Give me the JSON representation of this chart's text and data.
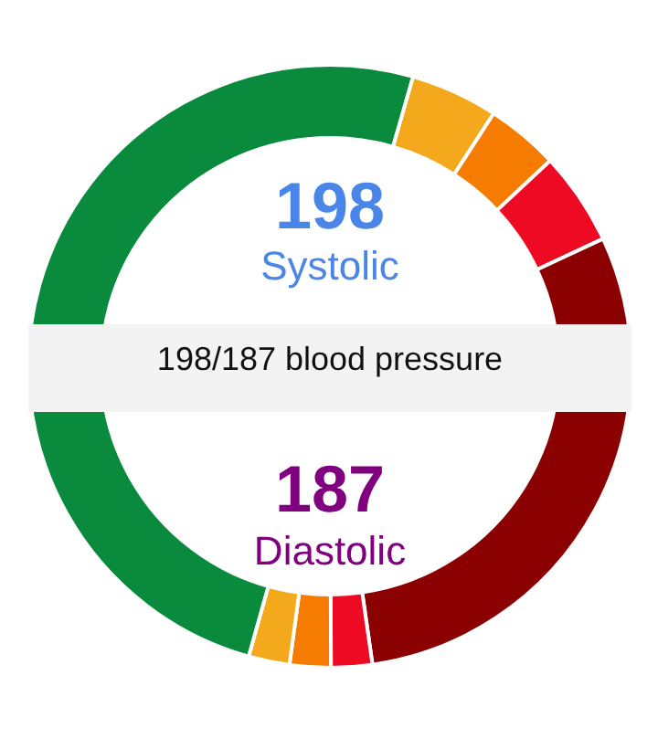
{
  "chart_data": {
    "type": "donut",
    "title": "198/187 blood pressure",
    "categories": [
      null,
      null,
      null,
      null,
      null,
      null,
      null,
      null
    ],
    "values": [
      4.7,
      3.9,
      5.0,
      29.7,
      2.2,
      2.2,
      2.2,
      50.1
    ],
    "colors": [
      "#f4a91c",
      "#f57c00",
      "#ee0a22",
      "#8b0000",
      "#ee0a22",
      "#f57c00",
      "#f4a91c",
      "#0a8a3d"
    ],
    "annotations": [
      "198",
      "Systolic",
      "187",
      "Diastolic"
    ]
  }
}
